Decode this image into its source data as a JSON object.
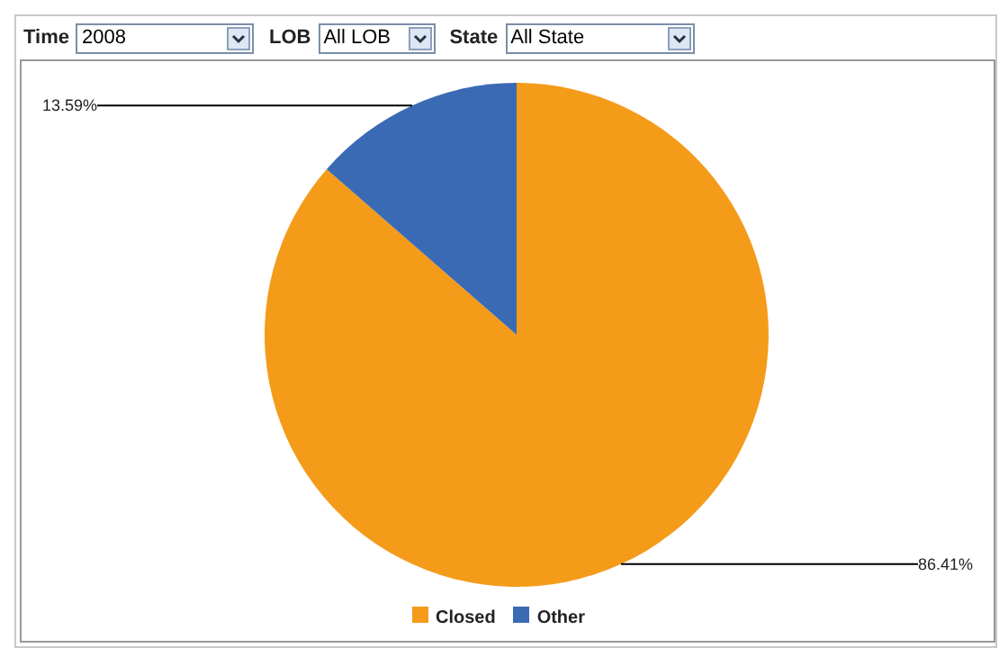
{
  "chart_data": {
    "type": "pie",
    "categories": [
      "Closed",
      "Other"
    ],
    "values": [
      86.41,
      13.59
    ],
    "colors": [
      "#f59b1a",
      "#3a6ab4"
    ],
    "value_labels": [
      "86.41%",
      "13.59%"
    ],
    "legend": "bottom",
    "annotations": [
      "Time",
      "2008",
      "LOB",
      "All LOB",
      "State",
      "All State"
    ]
  }
}
